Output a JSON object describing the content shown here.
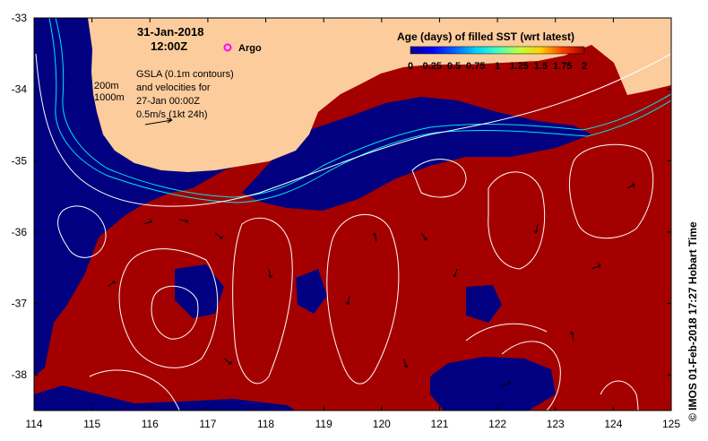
{
  "map": {
    "date": "31-Jan-2018",
    "time": "12:00Z",
    "argo_label": "Argo",
    "gsla_lines": [
      "GSLA (0.1m contours)",
      "and velocities for",
      "27-Jan 00:00Z",
      "0.5m/s (1kt 24h)"
    ],
    "isobath_labels": [
      "200m",
      "1000m"
    ],
    "colorbar": {
      "title": "Age (days) of filled SST (wrt latest)",
      "ticks": [
        "0",
        "0.25",
        "0.5",
        "0.75",
        "1",
        "1.25",
        "1.5",
        "1.75",
        "2"
      ],
      "range": [
        0,
        2
      ]
    },
    "credit": "© IMOS 01-Feb-2018 17:27 Hobart Time",
    "x_ticks": [
      "114",
      "115",
      "116",
      "117",
      "118",
      "119",
      "120",
      "121",
      "122",
      "123",
      "124",
      "125"
    ],
    "y_ticks": [
      "-33",
      "-34",
      "-35",
      "-36",
      "-37",
      "-38"
    ],
    "lon_range": [
      114,
      125
    ],
    "lat_range": [
      -38.5,
      -33
    ],
    "colors": {
      "land": "#fccc9c",
      "fresh_sst": "#000080",
      "old_sst": "#a50000",
      "isobath": "#00e5ee",
      "gsla_contour": "#ffffff",
      "argo_marker": "#ff00ff"
    }
  }
}
